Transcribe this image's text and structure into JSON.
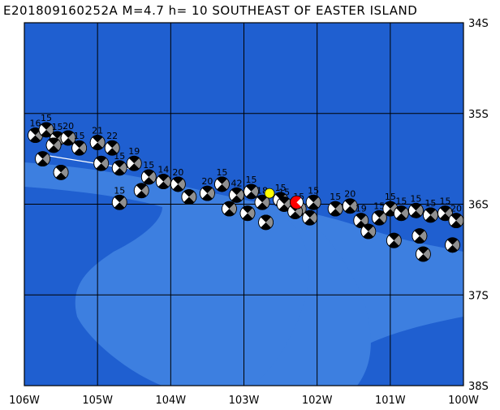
{
  "title": "E201809160252A M=4.7 h= 10 SOUTHEAST OF EASTER ISLAND",
  "colors": {
    "ocean_deep": "#1f5fd0",
    "ridge_shade": "#3d7fe0",
    "grid": "#000000",
    "highlight_event": "#ffff00",
    "main_event": "#ff0000",
    "mechanism_dark": "#909090",
    "mechanism_light": "#ffffff"
  },
  "axes": {
    "lon_labels": [
      "106W",
      "105W",
      "104W",
      "103W",
      "102W",
      "101W",
      "100W"
    ],
    "lat_labels": [
      "34S",
      "35S",
      "36S",
      "37S",
      "38S"
    ]
  },
  "map_extent": {
    "lon_min": -106,
    "lon_max": -100,
    "lat_min": -38,
    "lat_max": -34
  },
  "events": [
    {
      "lon": -105.85,
      "lat": -35.24,
      "label": "16"
    },
    {
      "lon": -105.7,
      "lat": -35.18,
      "label": "15"
    },
    {
      "lon": -105.55,
      "lat": -35.28,
      "label": "15"
    },
    {
      "lon": -105.4,
      "lat": -35.27,
      "label": "20"
    },
    {
      "lon": -105.6,
      "lat": -35.35,
      "label": ""
    },
    {
      "lon": -105.75,
      "lat": -35.5,
      "label": ""
    },
    {
      "lon": -105.5,
      "lat": -35.65,
      "label": ""
    },
    {
      "lon": -105.25,
      "lat": -35.38,
      "label": "15"
    },
    {
      "lon": -105.0,
      "lat": -35.32,
      "label": "21"
    },
    {
      "lon": -104.8,
      "lat": -35.38,
      "label": "22"
    },
    {
      "lon": -104.95,
      "lat": -35.55,
      "label": ""
    },
    {
      "lon": -104.7,
      "lat": -35.6,
      "label": "15"
    },
    {
      "lon": -104.5,
      "lat": -35.55,
      "label": "19"
    },
    {
      "lon": -104.3,
      "lat": -35.7,
      "label": "15"
    },
    {
      "lon": -104.1,
      "lat": -35.75,
      "label": "14"
    },
    {
      "lon": -103.9,
      "lat": -35.78,
      "label": "20"
    },
    {
      "lon": -104.7,
      "lat": -35.98,
      "label": "15"
    },
    {
      "lon": -104.4,
      "lat": -35.85,
      "label": ""
    },
    {
      "lon": -103.75,
      "lat": -35.92,
      "label": ""
    },
    {
      "lon": -103.5,
      "lat": -35.88,
      "label": "20"
    },
    {
      "lon": -103.3,
      "lat": -35.78,
      "label": "15"
    },
    {
      "lon": -103.1,
      "lat": -35.9,
      "label": "42"
    },
    {
      "lon": -102.9,
      "lat": -35.86,
      "label": "15"
    },
    {
      "lon": -103.2,
      "lat": -36.05,
      "label": ""
    },
    {
      "lon": -102.95,
      "lat": -36.1,
      "label": ""
    },
    {
      "lon": -102.75,
      "lat": -35.98,
      "label": "18"
    },
    {
      "lon": -102.5,
      "lat": -35.95,
      "label": "15"
    },
    {
      "lon": -102.7,
      "lat": -36.2,
      "label": ""
    },
    {
      "lon": -102.25,
      "lat": -36.05,
      "label": "15"
    },
    {
      "lon": -102.05,
      "lat": -35.98,
      "label": "15"
    },
    {
      "lon": -102.1,
      "lat": -36.15,
      "label": ""
    },
    {
      "lon": -101.75,
      "lat": -36.05,
      "label": "15"
    },
    {
      "lon": -101.55,
      "lat": -36.02,
      "label": "20"
    },
    {
      "lon": -101.4,
      "lat": -36.18,
      "label": "19"
    },
    {
      "lon": -101.15,
      "lat": -36.15,
      "label": "15"
    },
    {
      "lon": -101.0,
      "lat": -36.05,
      "label": "15"
    },
    {
      "lon": -100.85,
      "lat": -36.1,
      "label": "15"
    },
    {
      "lon": -100.65,
      "lat": -36.07,
      "label": "15"
    },
    {
      "lon": -100.45,
      "lat": -36.12,
      "label": "15"
    },
    {
      "lon": -100.25,
      "lat": -36.1,
      "label": "15"
    },
    {
      "lon": -100.1,
      "lat": -36.18,
      "label": "20"
    },
    {
      "lon": -101.3,
      "lat": -36.3,
      "label": ""
    },
    {
      "lon": -100.95,
      "lat": -36.4,
      "label": ""
    },
    {
      "lon": -100.6,
      "lat": -36.35,
      "label": ""
    },
    {
      "lon": -100.55,
      "lat": -36.55,
      "label": ""
    },
    {
      "lon": -100.15,
      "lat": -36.45,
      "label": ""
    },
    {
      "lon": -102.45,
      "lat": -36.0,
      "label": "15"
    },
    {
      "lon": -102.3,
      "lat": -36.08,
      "label": ""
    }
  ],
  "highlight_event": {
    "lon": -102.65,
    "lat": -35.88
  },
  "main_event": {
    "lon": -102.28,
    "lat": -35.98
  }
}
